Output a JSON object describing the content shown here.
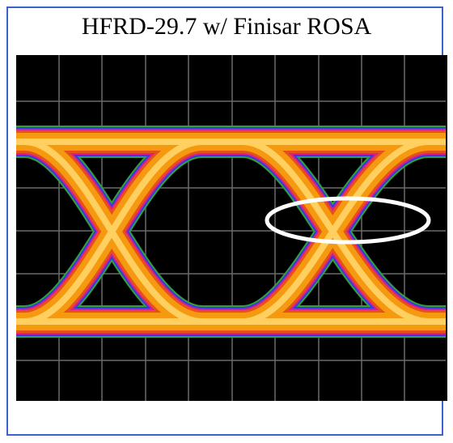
{
  "title": "HFRD-29.7 w/ Finisar ROSA"
}
